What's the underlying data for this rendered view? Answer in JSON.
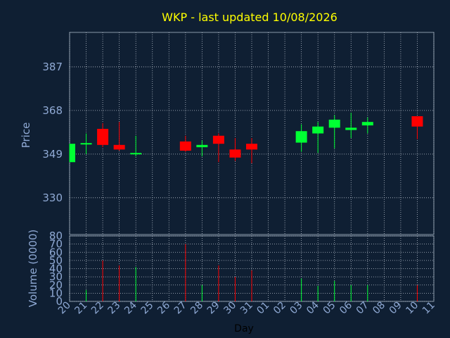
{
  "chart_data": {
    "type": "candlestick",
    "title": "WKP - last updated 10/08/2026",
    "xlabel": "Day",
    "price_ylabel": "Price",
    "volume_ylabel": "Volume (0000)",
    "x_tick_labels": [
      "20",
      "21",
      "22",
      "23",
      "24",
      "25",
      "26",
      "27",
      "28",
      "29",
      "30",
      "31",
      "01",
      "02",
      "03",
      "04",
      "05",
      "06",
      "07",
      "08",
      "09",
      "10",
      "11"
    ],
    "price_ticks": [
      330,
      349,
      368,
      387
    ],
    "price_ylim": [
      314,
      402
    ],
    "volume_ticks": [
      0,
      10,
      20,
      30,
      40,
      50,
      60,
      70,
      80
    ],
    "volume_ylim": [
      0,
      80
    ],
    "grid": true,
    "candles": [
      {
        "day": "20",
        "open": 345.5,
        "high": 353.5,
        "low": 345.5,
        "close": 353.5,
        "volume": 0
      },
      {
        "day": "21",
        "open": 353.2,
        "high": 358,
        "low": 349,
        "close": 353.8,
        "volume": 14
      },
      {
        "day": "22",
        "open": 360,
        "high": 362.5,
        "low": 352,
        "close": 353,
        "volume": 50
      },
      {
        "day": "23",
        "open": 353,
        "high": 363,
        "low": 350.5,
        "close": 351,
        "volume": 44
      },
      {
        "day": "24",
        "open": 349,
        "high": 357,
        "low": 348,
        "close": 349.5,
        "volume": 42
      },
      {
        "day": "27",
        "open": 354.5,
        "high": 357,
        "low": 350,
        "close": 350.5,
        "volume": 70
      },
      {
        "day": "28",
        "open": 352,
        "high": 355,
        "low": 348,
        "close": 353,
        "volume": 20
      },
      {
        "day": "29",
        "open": 357,
        "high": 358,
        "low": 345.5,
        "close": 353.5,
        "volume": 44
      },
      {
        "day": "30",
        "open": 351,
        "high": 356,
        "low": 346,
        "close": 347.5,
        "volume": 30
      },
      {
        "day": "31",
        "open": 353.5,
        "high": 356,
        "low": 345,
        "close": 351,
        "volume": 38
      },
      {
        "day": "03",
        "open": 354,
        "high": 362,
        "low": 350,
        "close": 359,
        "volume": 28
      },
      {
        "day": "04",
        "open": 358,
        "high": 363,
        "low": 349.5,
        "close": 361,
        "volume": 19
      },
      {
        "day": "05",
        "open": 360.5,
        "high": 366,
        "low": 351.5,
        "close": 364,
        "volume": 25
      },
      {
        "day": "06",
        "open": 359.5,
        "high": 367,
        "low": 356,
        "close": 360.5,
        "volume": 20
      },
      {
        "day": "07",
        "open": 361.5,
        "high": 365,
        "low": 358,
        "close": 363,
        "volume": 20
      },
      {
        "day": "10",
        "open": 365.5,
        "high": 365.5,
        "low": 355.5,
        "close": 361,
        "volume": 20
      }
    ],
    "colors": {
      "background": "#0f1f33",
      "up": "#00ff33",
      "down": "#ff0000",
      "grid": "#b8c0cc",
      "axis_text": "#8fa9d4",
      "title": "#ffff00",
      "axis_line": "#8899aa"
    }
  }
}
